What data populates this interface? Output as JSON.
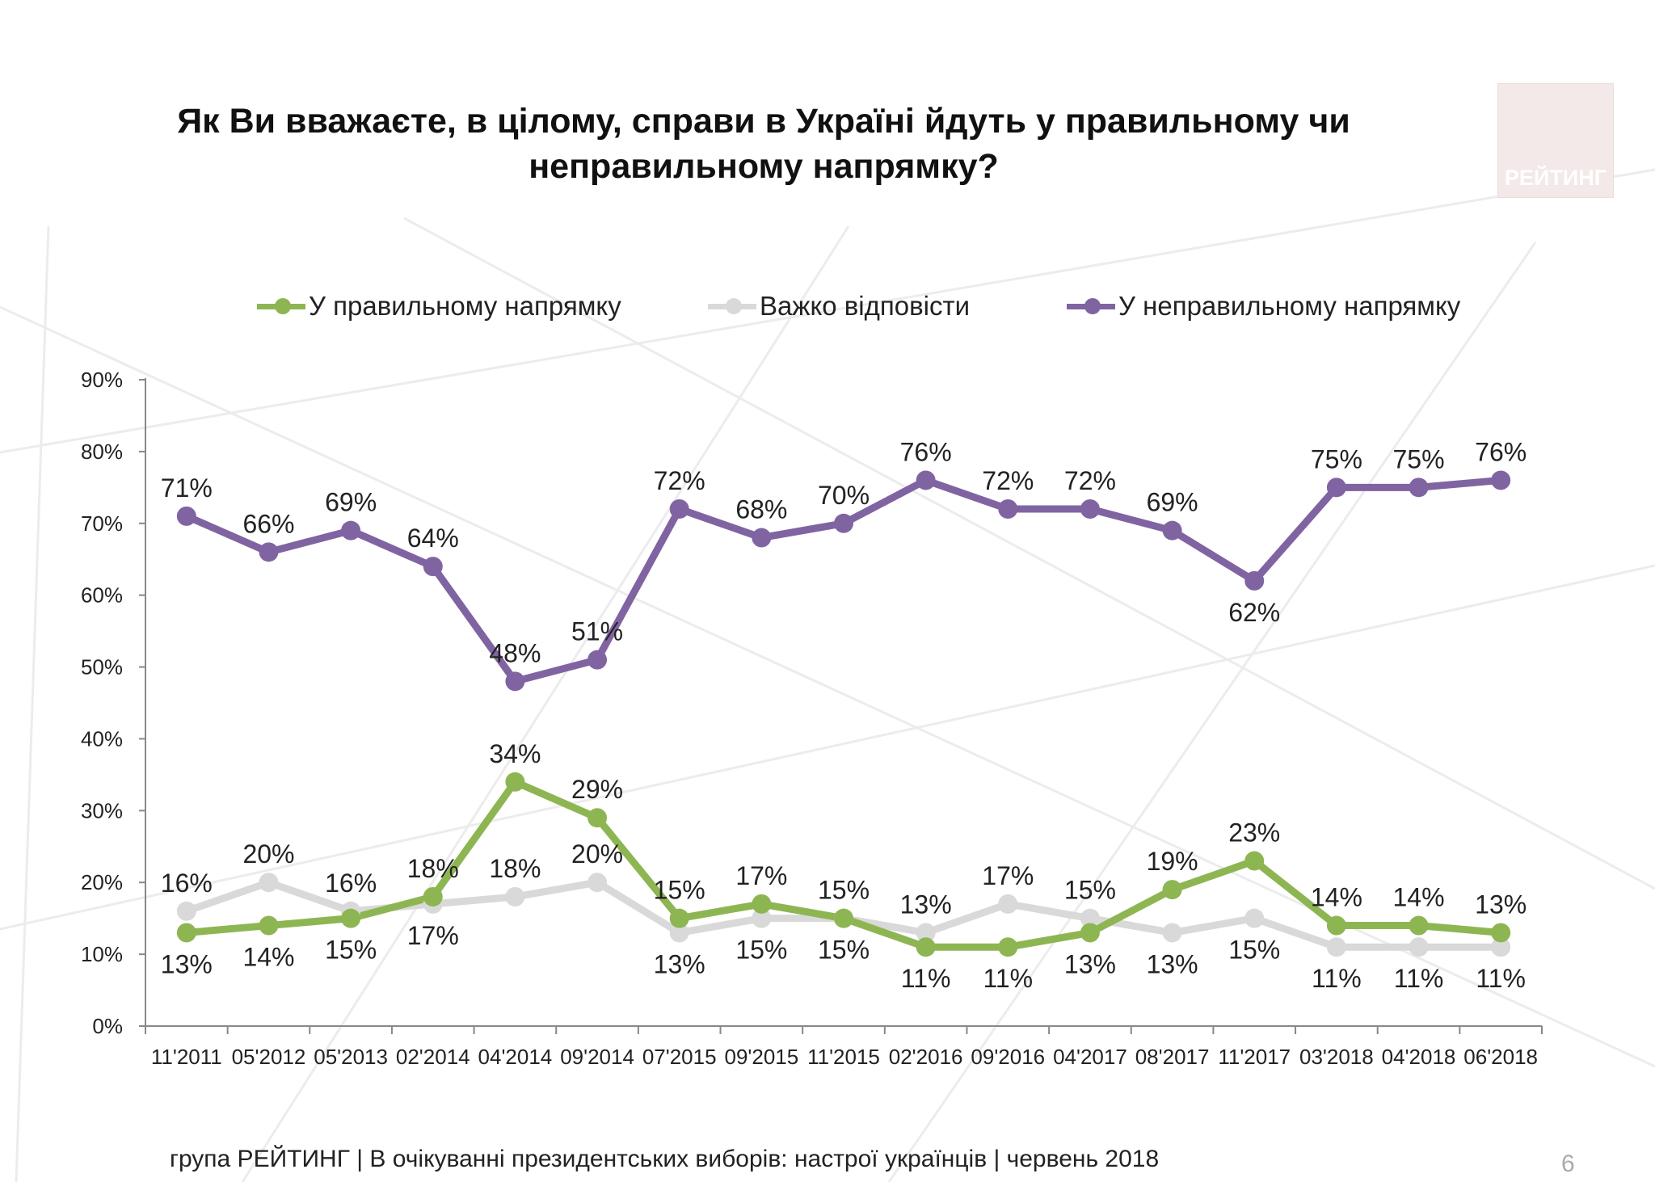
{
  "title": "Як Ви вважаєте, в цілому, справи в Україні йдуть у правильному чи неправильному напрямку?",
  "logo_text": "РЕЙТИНГ",
  "footer": "група РЕЙТИНГ  | В очікуванні президентських виборів: настрої українців |  червень 2018",
  "page_number": "6",
  "colors": {
    "right": "#8db653",
    "hard": "#d9d9d9",
    "wrong": "#8064a2"
  },
  "chart_data": {
    "type": "line",
    "categories": [
      "11'2011",
      "05'2012",
      "05'2013",
      "02'2014",
      "04'2014",
      "09'2014",
      "07'2015",
      "09'2015",
      "11'2015",
      "02'2016",
      "09'2016",
      "04'2017",
      "08'2017",
      "11'2017",
      "03'2018",
      "04'2018",
      "06'2018"
    ],
    "y_ticks": [
      "0%",
      "10%",
      "20%",
      "30%",
      "40%",
      "50%",
      "60%",
      "70%",
      "80%",
      "90%"
    ],
    "ylim": [
      0,
      90
    ],
    "legend_position": "top",
    "series": [
      {
        "name": "У правильному напрямку",
        "color": "#8db653",
        "values": [
          13,
          14,
          15,
          18,
          34,
          29,
          15,
          17,
          15,
          11,
          11,
          13,
          19,
          23,
          14,
          14,
          13
        ],
        "labels": [
          "13%",
          "14%",
          "15%",
          "18%",
          "34%",
          "29%",
          "15%",
          "17%",
          "15%",
          "11%",
          "11%",
          "13%",
          "19%",
          "23%",
          "14%",
          "14%",
          "13%"
        ]
      },
      {
        "name": "Важко відповісти",
        "color": "#d9d9d9",
        "values": [
          16,
          20,
          16,
          17,
          18,
          20,
          13,
          15,
          15,
          13,
          17,
          15,
          13,
          15,
          11,
          11,
          11
        ],
        "labels": [
          "16%",
          "20%",
          "16%",
          "17%",
          "18%",
          "20%",
          "13%",
          "15%",
          "15%",
          "13%",
          "17%",
          "15%",
          "13%",
          "15%",
          "11%",
          "11%",
          "11%"
        ]
      },
      {
        "name": "У неправильному напрямку",
        "color": "#8064a2",
        "values": [
          71,
          66,
          69,
          64,
          48,
          51,
          72,
          68,
          70,
          76,
          72,
          72,
          69,
          62,
          75,
          75,
          76
        ],
        "labels": [
          "71%",
          "66%",
          "69%",
          "64%",
          "48%",
          "51%",
          "72%",
          "68%",
          "70%",
          "76%",
          "72%",
          "72%",
          "69%",
          "62%",
          "75%",
          "75%",
          "76%"
        ]
      }
    ]
  }
}
